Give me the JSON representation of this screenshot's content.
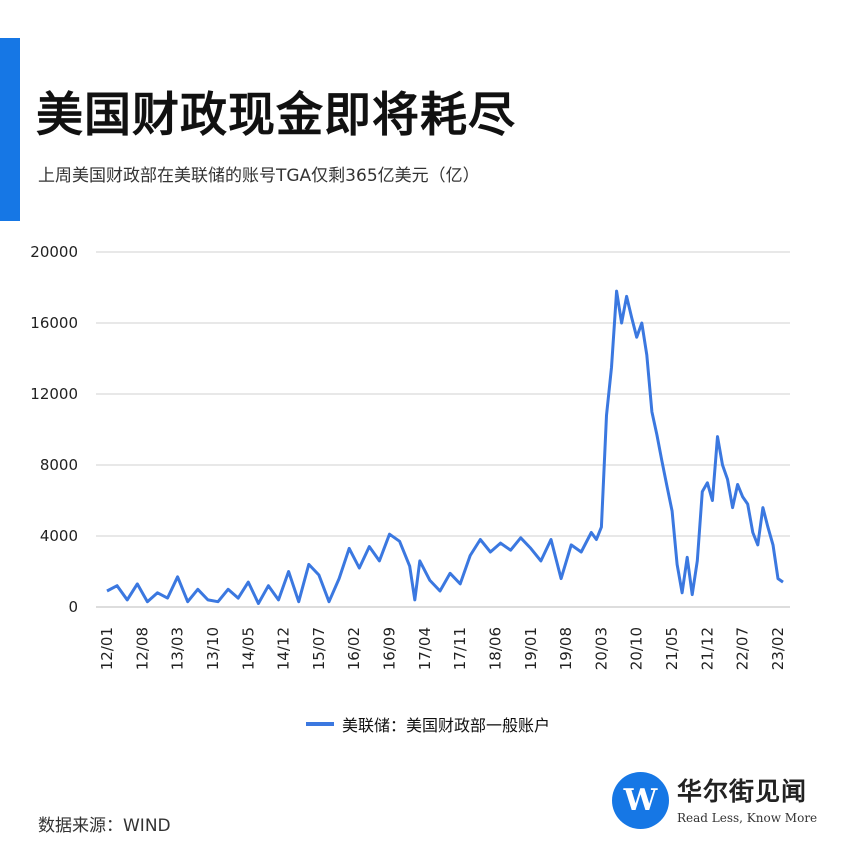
{
  "header": {
    "title": "美国财政现金即将耗尽",
    "subtitle": "上周美国财政部在美联储的账号TGA仅剩365亿美元（亿）"
  },
  "legend": {
    "label": "美联储：美国财政部一般账户"
  },
  "footer": {
    "source": "数据来源：WIND",
    "logo_mark": "W",
    "logo_name": "华尔街见闻",
    "logo_slogan": "Read Less, Know More"
  },
  "colors": {
    "accent": "#1677e5",
    "line": "#3b78e0",
    "grid": "#d0d0d0"
  },
  "chart_data": {
    "type": "line",
    "title": "美国财政现金即将耗尽",
    "subtitle": "上周美国财政部在美联储的账号TGA仅剩365亿美元（亿）",
    "ylim": [
      0,
      20000
    ],
    "yticks": [
      0,
      4000,
      8000,
      12000,
      16000,
      20000
    ],
    "yticklabels": [
      "0",
      "4000",
      "8000",
      "12000",
      "16000",
      "20000"
    ],
    "xticks": [
      "12/01",
      "12/08",
      "13/03",
      "13/10",
      "14/05",
      "14/12",
      "15/07",
      "16/02",
      "16/09",
      "17/04",
      "17/11",
      "18/06",
      "19/01",
      "19/08",
      "20/03",
      "20/10",
      "21/05",
      "21/12",
      "22/07",
      "23/02"
    ],
    "grid": true,
    "legend_position": "bottom-center",
    "series": [
      {
        "name": "美联储：美国财政部一般账户",
        "x": [
          "2012-01",
          "2012-03",
          "2012-05",
          "2012-07",
          "2012-09",
          "2012-11",
          "2013-01",
          "2013-03",
          "2013-05",
          "2013-07",
          "2013-09",
          "2013-11",
          "2014-01",
          "2014-03",
          "2014-05",
          "2014-07",
          "2014-09",
          "2014-11",
          "2015-01",
          "2015-03",
          "2015-05",
          "2015-07",
          "2015-09",
          "2015-11",
          "2016-01",
          "2016-03",
          "2016-05",
          "2016-07",
          "2016-09",
          "2016-11",
          "2017-01",
          "2017-02",
          "2017-03",
          "2017-05",
          "2017-07",
          "2017-09",
          "2017-11",
          "2018-01",
          "2018-03",
          "2018-05",
          "2018-07",
          "2018-09",
          "2018-11",
          "2019-01",
          "2019-03",
          "2019-05",
          "2019-07",
          "2019-09",
          "2019-11",
          "2020-01",
          "2020-02",
          "2020-03",
          "2020-04",
          "2020-05",
          "2020-06",
          "2020-07",
          "2020-08",
          "2020-09",
          "2020-10",
          "2020-11",
          "2020-12",
          "2021-01",
          "2021-02",
          "2021-03",
          "2021-04",
          "2021-05",
          "2021-06",
          "2021-07",
          "2021-08",
          "2021-09",
          "2021-10",
          "2021-11",
          "2021-12",
          "2022-01",
          "2022-02",
          "2022-03",
          "2022-04",
          "2022-05",
          "2022-06",
          "2022-07",
          "2022-08",
          "2022-09",
          "2022-10",
          "2022-11",
          "2022-12",
          "2023-01",
          "2023-02",
          "2023-03"
        ],
        "values": [
          900,
          1200,
          400,
          1300,
          300,
          800,
          500,
          1700,
          300,
          1000,
          400,
          300,
          1000,
          500,
          1400,
          200,
          1200,
          400,
          2000,
          300,
          2400,
          1800,
          300,
          1600,
          3300,
          2200,
          3400,
          2600,
          4100,
          3700,
          2300,
          400,
          2600,
          1500,
          900,
          1900,
          1300,
          2900,
          3800,
          3100,
          3600,
          3200,
          3900,
          3300,
          2600,
          3800,
          1600,
          3500,
          3100,
          4200,
          3800,
          4500,
          10800,
          13500,
          17800,
          16000,
          17500,
          16300,
          15200,
          16000,
          14200,
          11000,
          9700,
          8200,
          6800,
          5400,
          2400,
          800,
          2800,
          700,
          2600,
          6500,
          7000,
          6000,
          9600,
          8000,
          7200,
          5600,
          6900,
          6200,
          5800,
          4200,
          3500,
          5600,
          4500,
          3500,
          1600,
          1400
        ]
      }
    ]
  }
}
